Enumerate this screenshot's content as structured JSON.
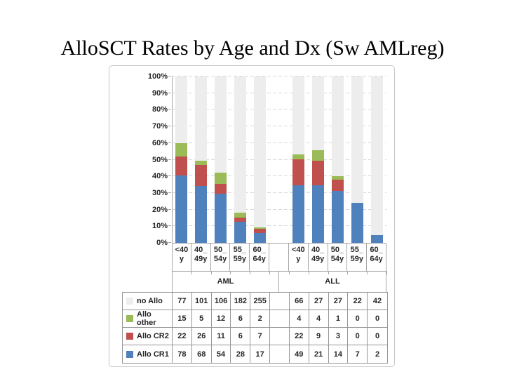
{
  "slide": {
    "title": "AlloSCT Rates by Age and Dx (Sw AMLreg)"
  },
  "colors": {
    "allo_cr1_blue": "#4F81BD",
    "allo_cr2_red": "#C0504D",
    "allo_other_green": "#9BBB59",
    "no_allo_gray": "#EDEDED",
    "gridline": "#D9D9D9",
    "axis_line": "#A6A6A6",
    "table_line": "#969696",
    "chart_border": "#C6C6C6",
    "text": "#262626"
  },
  "chart_data": {
    "type": "bar",
    "subtype": "100-percent-stacked-column",
    "title": "",
    "xlabel": "",
    "ylabel": "",
    "ylim": [
      0,
      100
    ],
    "grid": true,
    "legend_position": "data-table-left-keys",
    "y_axis": {
      "tick_labels": [
        "0%",
        "10%",
        "20%",
        "30%",
        "40%",
        "50%",
        "60%",
        "70%",
        "80%",
        "90%",
        "100%"
      ]
    },
    "categories": [
      [
        "<40",
        "y"
      ],
      [
        "40_",
        "49y"
      ],
      [
        "50_",
        "54y"
      ],
      [
        "55_",
        "59y"
      ],
      [
        "60_",
        "64y"
      ],
      [
        "",
        ""
      ],
      [
        "<40",
        "y"
      ],
      [
        "40_",
        "49y"
      ],
      [
        "50_",
        "54y"
      ],
      [
        "55_",
        "59y"
      ],
      [
        "60_",
        "64y"
      ]
    ],
    "group_labels": [
      "AML",
      "ALL"
    ],
    "stack_order_bottom_to_top": [
      "Allo CR1",
      "Allo CR2",
      "Allo other",
      "no Allo"
    ],
    "series": [
      {
        "name": "no Allo",
        "color": "#EDEDED",
        "values": [
          77,
          101,
          106,
          182,
          255,
          null,
          66,
          27,
          27,
          22,
          42
        ]
      },
      {
        "name": "Allo other",
        "color": "#9BBB59",
        "values": [
          15,
          5,
          12,
          6,
          2,
          null,
          4,
          4,
          1,
          0,
          0
        ]
      },
      {
        "name": "Allo CR2",
        "color": "#C0504D",
        "values": [
          22,
          26,
          11,
          6,
          7,
          null,
          22,
          9,
          3,
          0,
          0
        ]
      },
      {
        "name": "Allo CR1",
        "color": "#4F81BD",
        "values": [
          78,
          68,
          54,
          28,
          17,
          null,
          49,
          21,
          14,
          7,
          2
        ]
      }
    ],
    "note_units": "table shows patient counts; bars show percent of column total"
  }
}
